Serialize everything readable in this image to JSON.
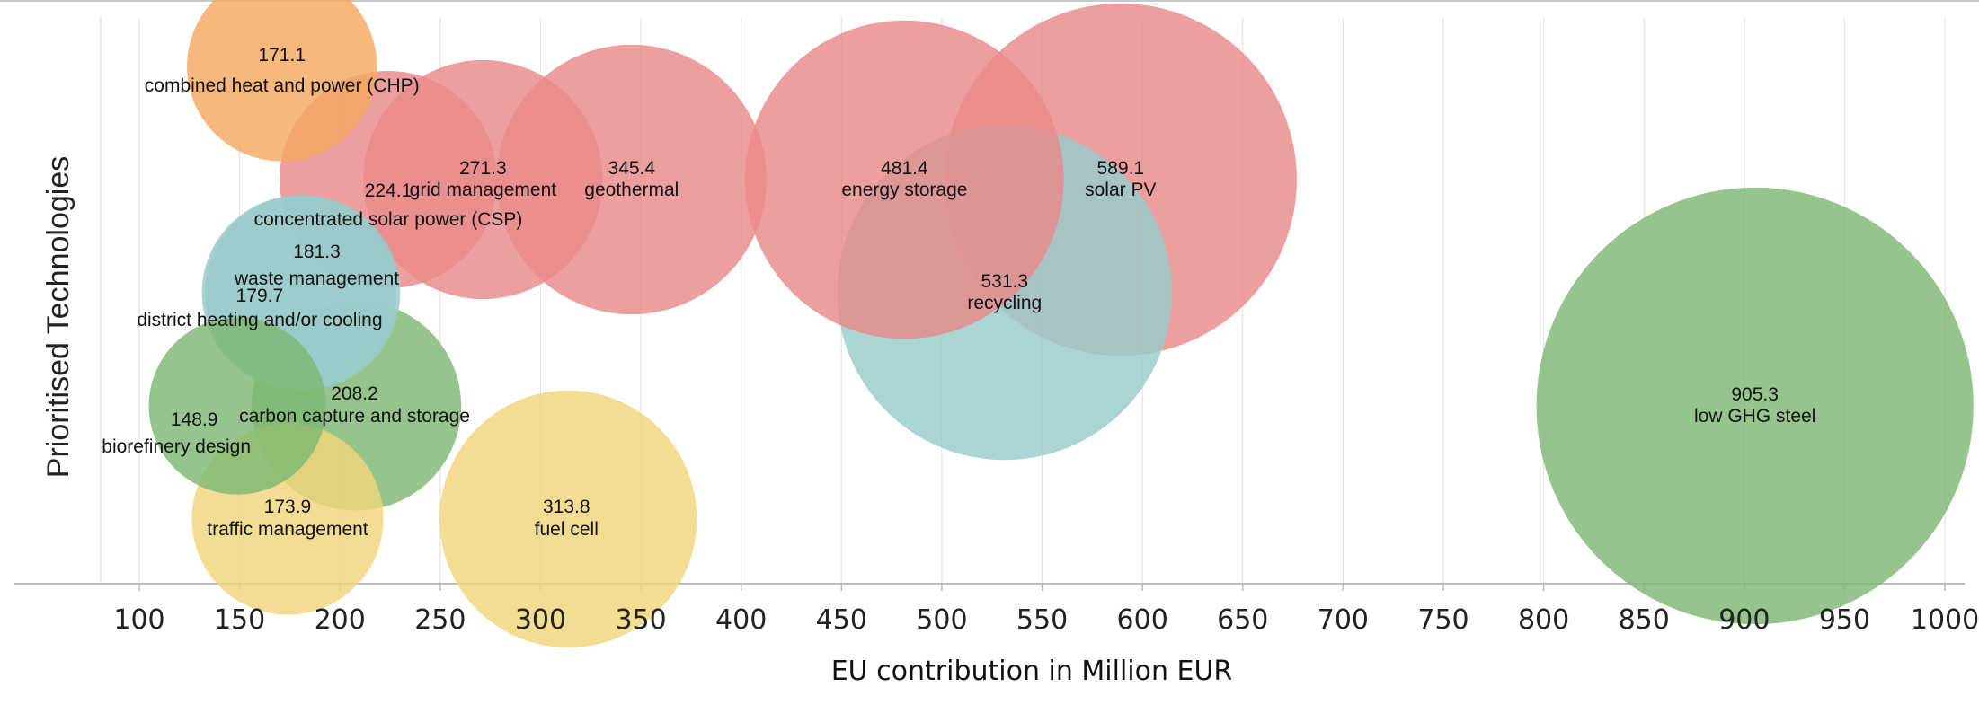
{
  "chart_data": {
    "type": "bubble",
    "title": "",
    "xlabel": "EU contribution in Million EUR",
    "ylabel": "Prioritised Technologies",
    "xlim": [
      78,
      1010
    ],
    "xticks": [
      100,
      150,
      200,
      250,
      300,
      350,
      400,
      450,
      500,
      550,
      600,
      650,
      700,
      750,
      800,
      850,
      900,
      950,
      1000
    ],
    "grid": "vertical",
    "legend": "none",
    "groups": [
      {
        "row": 1,
        "color": "#F5A862"
      },
      {
        "row": 2,
        "color": "#E98A8A"
      },
      {
        "row": 3,
        "color": "#99CACA"
      },
      {
        "row": 4,
        "color": "#7EB873"
      },
      {
        "row": 5,
        "color": "#F1D67A"
      }
    ],
    "points": [
      {
        "label": "combined heat and power (CHP)",
        "value_label": "171.1",
        "x": 171.1,
        "row": 1
      },
      {
        "label": "concentrated solar power (CSP)",
        "value_label": "224.1",
        "x": 224.1,
        "row": 2
      },
      {
        "label": "grid management",
        "value_label": "271.3",
        "x": 271.3,
        "row": 2
      },
      {
        "label": "geothermal",
        "value_label": "345.4",
        "x": 345.4,
        "row": 2
      },
      {
        "label": "energy storage",
        "value_label": "481.4",
        "x": 481.4,
        "row": 2
      },
      {
        "label": "solar PV",
        "value_label": "589.1",
        "x": 589.1,
        "row": 2
      },
      {
        "label": "waste management",
        "value_label": "181.3",
        "x": 181.3,
        "row": 3
      },
      {
        "label": "district heating and/or cooling",
        "value_label": "179.7",
        "x": 179.7,
        "row": 3
      },
      {
        "label": "recycling",
        "value_label": "531.3",
        "x": 531.3,
        "row": 3
      },
      {
        "label": "biorefinery design",
        "value_label": "148.9",
        "x": 148.9,
        "row": 4
      },
      {
        "label": "carbon capture and storage",
        "value_label": "208.2",
        "x": 208.2,
        "row": 4
      },
      {
        "label": "low GHG steel",
        "value_label": "905.3",
        "x": 905.3,
        "row": 4
      },
      {
        "label": "traffic management",
        "value_label": "173.9",
        "x": 173.9,
        "row": 5
      },
      {
        "label": "fuel cell",
        "value_label": "313.8",
        "x": 313.8,
        "row": 5
      }
    ]
  }
}
